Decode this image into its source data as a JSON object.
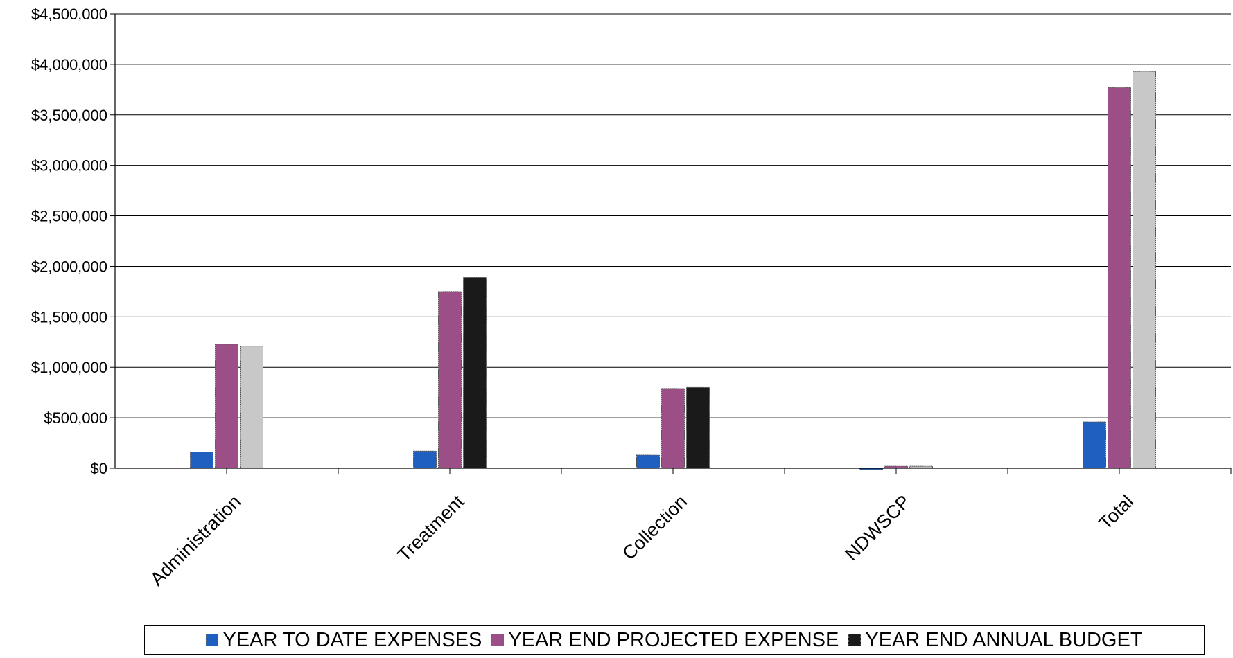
{
  "chart_data": {
    "type": "bar",
    "categories": [
      "Administration",
      "Treatment",
      "Collection",
      "NDWSCP",
      "Total"
    ],
    "series": [
      {
        "name": "YEAR TO DATE EXPENSES",
        "values": [
          160000,
          170000,
          130000,
          0,
          460000
        ],
        "color": "#1f5fbf"
      },
      {
        "name": "YEAR END PROJECTED EXPENSE",
        "values": [
          1230000,
          1750000,
          790000,
          20000,
          3770000
        ],
        "color": "#9b4f86"
      },
      {
        "name": "YEAR END ANNUAL BUDGET",
        "values": [
          1210000,
          1890000,
          800000,
          20000,
          3930000
        ],
        "color": "#c8c8c8"
      }
    ],
    "bar_colors": [
      [
        "#1f5fbf",
        "#9b4f86",
        "#c8c8c8"
      ],
      [
        "#1f5fbf",
        "#9b4f86",
        "#1a1a1a"
      ],
      [
        "#1f5fbf",
        "#9b4f86",
        "#1a1a1a"
      ],
      [
        "#1f5fbf",
        "#9b4f86",
        "#b8b8b8"
      ],
      [
        "#1f5fbf",
        "#9b4f86",
        "#c8c8c8"
      ]
    ],
    "legend_swatch_colors": [
      "#1f5fbf",
      "#9b4f86",
      "#1a1a1a"
    ],
    "ylim": [
      0,
      4500000
    ],
    "yticks": [
      0,
      500000,
      1000000,
      1500000,
      2000000,
      2500000,
      3000000,
      3500000,
      4000000,
      4500000
    ],
    "ytick_labels": [
      "$0",
      "$500,000",
      "$1,000,000",
      "$1,500,000",
      "$2,000,000",
      "$2,500,000",
      "$3,000,000",
      "$3,500,000",
      "$4,000,000",
      "$4,500,000"
    ],
    "grid": true,
    "legend_position": "bottom",
    "title": "",
    "xlabel": "",
    "ylabel": ""
  }
}
